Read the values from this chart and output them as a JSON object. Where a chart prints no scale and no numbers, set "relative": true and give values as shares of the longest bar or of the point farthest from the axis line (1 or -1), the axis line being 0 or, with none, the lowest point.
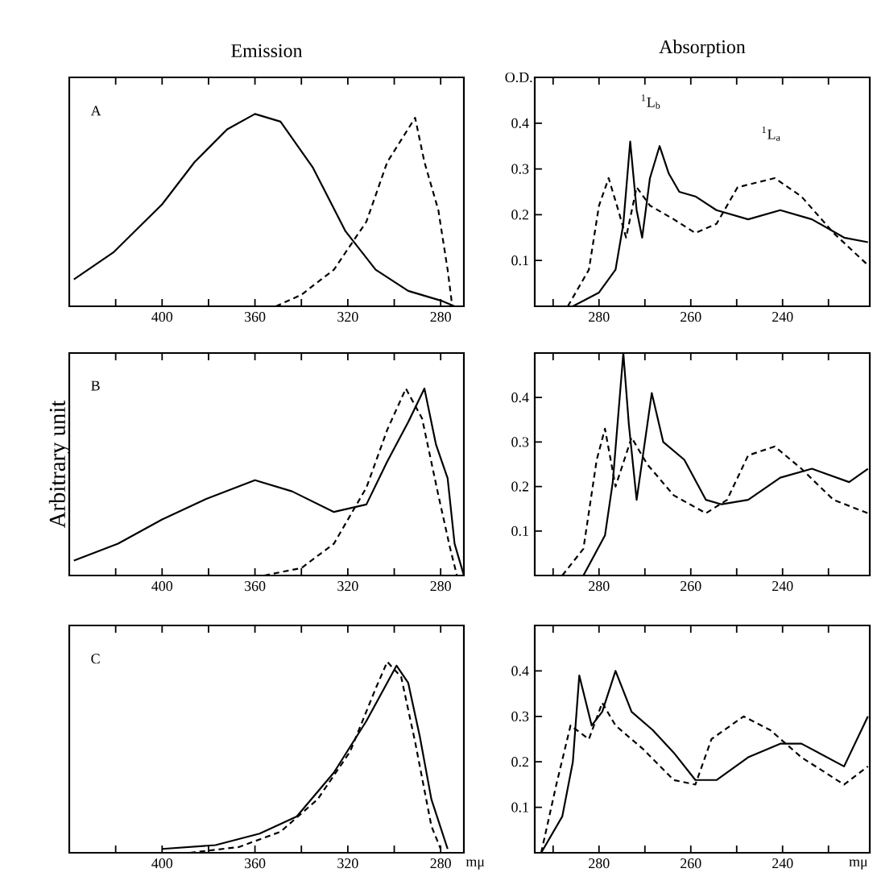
{
  "chart_data": [
    {
      "type": "line",
      "title": "Emission",
      "relative": true,
      "tick_labels": "x",
      "xlim": [
        440,
        270
      ],
      "xticks": [
        {
          "value": 420,
          "label": null
        },
        400,
        {
          "value": 380,
          "label": null
        },
        360,
        {
          "value": 340,
          "label": null
        },
        320,
        {
          "value": 300,
          "label": null
        },
        280
      ],
      "annotations": [
        "A"
      ],
      "series": [
        {
          "color": "#000000",
          "line_style": "solid",
          "x": [
            438,
            421,
            400,
            386,
            372,
            360,
            349,
            335,
            321,
            308,
            294,
            280,
            274
          ],
          "values": [
            0.14,
            0.28,
            0.53,
            0.75,
            0.92,
            1.0,
            0.96,
            0.72,
            0.39,
            0.19,
            0.08,
            0.03,
            0
          ]
        },
        {
          "color": "#000000",
          "line_style": "dashed",
          "x": [
            351,
            340,
            326,
            312,
            303,
            291,
            287,
            281,
            277,
            275
          ],
          "values": [
            0,
            0.06,
            0.19,
            0.44,
            0.75,
            0.98,
            0.75,
            0.5,
            0.19,
            0
          ]
        }
      ]
    },
    {
      "type": "line",
      "title": "Absorption",
      "ylabel": "O.D.",
      "xlim": [
        294,
        221
      ],
      "ylim": [
        0,
        0.5
      ],
      "xticks": [
        {
          "value": 290,
          "label": null
        },
        280,
        {
          "value": 270,
          "label": null
        },
        260,
        {
          "value": 250,
          "label": null
        },
        240,
        {
          "value": 230,
          "label": null
        }
      ],
      "yticks": [
        0.1,
        0.2,
        0.3,
        0.4
      ],
      "annotations": [
        "$^{1}$L$_{b}$",
        "$^{1}$L$_{a}$"
      ],
      "series": [
        {
          "color": "#000000",
          "line_style": "solid",
          "x": [
            285.7,
            280,
            276.4,
            274.7,
            273.2,
            271.8,
            270.6,
            268.9,
            266.8,
            264.8,
            262.5,
            259,
            254.4,
            247.5,
            240.5,
            233.6,
            226.6,
            221.4
          ],
          "values": [
            0,
            0.03,
            0.08,
            0.18,
            0.36,
            0.21,
            0.15,
            0.28,
            0.35,
            0.29,
            0.25,
            0.24,
            0.21,
            0.19,
            0.21,
            0.19,
            0.15,
            0.14
          ]
        },
        {
          "color": "#000000",
          "line_style": "dashed",
          "x": [
            286.8,
            282.2,
            280,
            277.9,
            275.8,
            274.1,
            271.8,
            268.9,
            263.7,
            259,
            254.4,
            249.8,
            241.7,
            235.9,
            228.9,
            221.4
          ],
          "values": [
            0,
            0.08,
            0.22,
            0.28,
            0.21,
            0.15,
            0.26,
            0.22,
            0.19,
            0.16,
            0.18,
            0.26,
            0.28,
            0.24,
            0.16,
            0.09
          ]
        }
      ]
    },
    {
      "type": "line",
      "ylabel": "Arbitrary unit",
      "relative": true,
      "tick_labels": "x",
      "xlim": [
        440,
        270
      ],
      "xticks": [
        {
          "value": 420,
          "label": null
        },
        400,
        {
          "value": 380,
          "label": null
        },
        360,
        {
          "value": 340,
          "label": null
        },
        320,
        {
          "value": 300,
          "label": null
        },
        280
      ],
      "annotations": [
        "B"
      ],
      "series": [
        {
          "color": "#000000",
          "line_style": "solid",
          "x": [
            438,
            419,
            400,
            381,
            360,
            344,
            326,
            312,
            303,
            294,
            287,
            282,
            277,
            274,
            270
          ],
          "values": [
            0.08,
            0.17,
            0.3,
            0.41,
            0.51,
            0.45,
            0.34,
            0.38,
            0.61,
            0.82,
            1.0,
            0.7,
            0.52,
            0.17,
            0
          ]
        },
        {
          "color": "#000000",
          "line_style": "dashed",
          "x": [
            356,
            340,
            326,
            312,
            303,
            295,
            288,
            281,
            276,
            273
          ],
          "values": [
            0,
            0.04,
            0.17,
            0.47,
            0.78,
            1.0,
            0.84,
            0.43,
            0.15,
            0
          ]
        }
      ]
    },
    {
      "type": "line",
      "xlim": [
        294,
        221
      ],
      "ylim": [
        0,
        0.5
      ],
      "xticks": [
        {
          "value": 290,
          "label": null
        },
        280,
        {
          "value": 270,
          "label": null
        },
        260,
        {
          "value": 250,
          "label": null
        },
        240,
        {
          "value": 230,
          "label": null
        }
      ],
      "yticks": [
        0.1,
        0.2,
        0.3,
        0.4
      ],
      "series": [
        {
          "color": "#000000",
          "line_style": "solid",
          "x": [
            283.4,
            278.7,
            277,
            274.7,
            273.5,
            271.8,
            268.5,
            266,
            261.4,
            256.7,
            253.3,
            247.5,
            240.5,
            233.6,
            225.5,
            221.4
          ],
          "values": [
            0,
            0.09,
            0.21,
            0.5,
            0.34,
            0.17,
            0.41,
            0.3,
            0.26,
            0.17,
            0.16,
            0.17,
            0.22,
            0.24,
            0.21,
            0.24
          ]
        },
        {
          "color": "#000000",
          "line_style": "dashed",
          "x": [
            288,
            283.4,
            280.5,
            278.7,
            276.4,
            272.9,
            269.5,
            263.7,
            256.7,
            252.1,
            247.5,
            241.7,
            235.9,
            228.9,
            221.4
          ],
          "values": [
            0,
            0.06,
            0.26,
            0.33,
            0.2,
            0.31,
            0.25,
            0.18,
            0.14,
            0.17,
            0.27,
            0.29,
            0.24,
            0.17,
            0.14
          ]
        }
      ]
    },
    {
      "type": "line",
      "xlabel": "mμ",
      "relative": true,
      "tick_labels": "x",
      "xlim": [
        440,
        270
      ],
      "xticks": [
        {
          "value": 420,
          "label": null
        },
        400,
        {
          "value": 380,
          "label": null
        },
        360,
        {
          "value": 340,
          "label": null
        },
        320,
        {
          "value": 300,
          "label": null
        },
        280
      ],
      "annotations": [
        "C"
      ],
      "series": [
        {
          "color": "#000000",
          "line_style": "solid",
          "x": [
            400,
            377,
            358,
            342,
            326,
            312,
            299,
            294,
            289,
            284,
            277
          ],
          "values": [
            0.02,
            0.04,
            0.1,
            0.19,
            0.42,
            0.69,
            0.98,
            0.89,
            0.61,
            0.28,
            0.02
          ]
        },
        {
          "color": "#000000",
          "line_style": "dashed",
          "x": [
            388,
            367,
            349,
            333,
            319,
            308,
            303,
            297,
            291,
            284,
            280
          ],
          "values": [
            0,
            0.03,
            0.11,
            0.28,
            0.53,
            0.86,
            1.0,
            0.92,
            0.58,
            0.14,
            0.02
          ]
        }
      ]
    },
    {
      "type": "line",
      "xlabel": "mμ",
      "xlim": [
        294,
        221
      ],
      "ylim": [
        0,
        0.5
      ],
      "xticks": [
        {
          "value": 290,
          "label": null
        },
        280,
        {
          "value": 270,
          "label": null
        },
        260,
        {
          "value": 250,
          "label": null
        },
        240,
        {
          "value": 230,
          "label": null
        }
      ],
      "yticks": [
        0.1,
        0.2,
        0.3,
        0.4
      ],
      "series": [
        {
          "color": "#000000",
          "line_style": "solid",
          "x": [
            292.6,
            288,
            285.7,
            284.3,
            281.6,
            279.3,
            276.4,
            272.9,
            268.3,
            263.7,
            259,
            254.4,
            247.5,
            240.5,
            235.9,
            226.6,
            221.4
          ],
          "values": [
            0,
            0.08,
            0.2,
            0.39,
            0.28,
            0.31,
            0.4,
            0.31,
            0.27,
            0.22,
            0.16,
            0.16,
            0.21,
            0.24,
            0.24,
            0.19,
            0.3
          ]
        },
        {
          "color": "#000000",
          "line_style": "dashed",
          "x": [
            292.6,
            289.3,
            286.2,
            282.2,
            279.3,
            276.4,
            270.6,
            263.7,
            259,
            255.5,
            248.5,
            242.7,
            235.9,
            226.6,
            221.4
          ],
          "values": [
            0,
            0.15,
            0.28,
            0.25,
            0.33,
            0.28,
            0.23,
            0.16,
            0.15,
            0.25,
            0.3,
            0.27,
            0.21,
            0.15,
            0.19
          ]
        }
      ]
    }
  ]
}
